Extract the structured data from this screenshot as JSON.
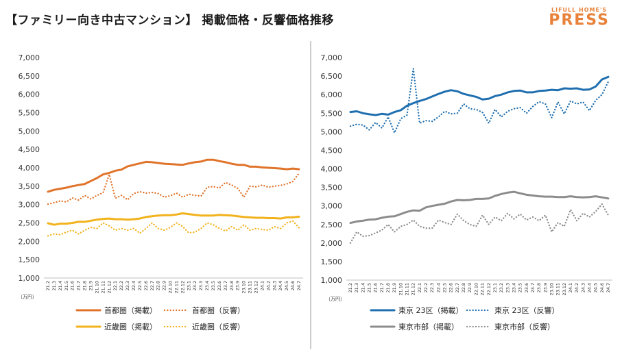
{
  "title": "【ファミリー向き中古マンション】 掲載価格・反響価格推移",
  "brand": {
    "top": "LIFULL HOME'S",
    "name": "PRESS"
  },
  "colors": {
    "orange": "#e0732a",
    "orange_dot": "#e0732a",
    "yellow": "#f2b21c",
    "yellow_dot": "#f2b21c",
    "blue": "#1f6fb0",
    "blue_dot": "#1f6fb0",
    "gray": "#8c8c8c",
    "gray_dot": "#8c8c8c"
  },
  "chart_data": [
    {
      "type": "line",
      "unit_label": "（万円）",
      "ylim": [
        1000,
        7000
      ],
      "yticks": [
        "1,000",
        "1,500",
        "2,000",
        "2,500",
        "3,000",
        "3,500",
        "4,000",
        "4,500",
        "5,000",
        "5,500",
        "6,000",
        "6,500",
        "7,000"
      ],
      "x": [
        "21.2",
        "21.3",
        "21.4",
        "21.5",
        "21.6",
        "21.7",
        "21.8",
        "21.9",
        "21.10",
        "21.11",
        "21.12",
        "22.1",
        "22.2",
        "22.3",
        "22.4",
        "22.5",
        "22.6",
        "22.7",
        "22.8",
        "22.9",
        "22.10",
        "22.11",
        "22.12",
        "23.1",
        "23.2",
        "23.3",
        "23.4",
        "23.5",
        "23.6",
        "23.7",
        "23.8",
        "23.9",
        "23.10",
        "23.11",
        "23.12",
        "24.1",
        "24.2",
        "24.3",
        "24.4",
        "24.5",
        "24.6",
        "24.7"
      ],
      "series": [
        {
          "name": "首都圏（掲載）",
          "style": "solid",
          "color": "orange",
          "values": [
            3350,
            3400,
            3430,
            3460,
            3500,
            3530,
            3560,
            3640,
            3720,
            3820,
            3860,
            3920,
            3950,
            4040,
            4080,
            4120,
            4160,
            4150,
            4130,
            4110,
            4100,
            4090,
            4080,
            4120,
            4150,
            4170,
            4220,
            4220,
            4180,
            4150,
            4110,
            4080,
            4080,
            4030,
            4030,
            4010,
            4000,
            3990,
            3980,
            3960,
            3980,
            3960
          ]
        },
        {
          "name": "首都圏（反響）",
          "style": "dotted",
          "color": "orange_dot",
          "values": [
            3010,
            3050,
            3100,
            3070,
            3180,
            3120,
            3250,
            3150,
            3250,
            3320,
            3820,
            3170,
            3250,
            3130,
            3300,
            3350,
            3310,
            3330,
            3300,
            3200,
            3240,
            3310,
            3200,
            3280,
            3250,
            3230,
            3470,
            3490,
            3450,
            3600,
            3530,
            3440,
            3200,
            3500,
            3480,
            3530,
            3470,
            3500,
            3520,
            3560,
            3630,
            3850
          ]
        },
        {
          "name": "近畿圏（掲載）",
          "style": "solid",
          "color": "yellow",
          "values": [
            2490,
            2450,
            2480,
            2480,
            2500,
            2530,
            2530,
            2560,
            2590,
            2610,
            2620,
            2600,
            2600,
            2590,
            2600,
            2620,
            2660,
            2680,
            2700,
            2710,
            2710,
            2730,
            2760,
            2740,
            2720,
            2700,
            2700,
            2700,
            2720,
            2710,
            2700,
            2680,
            2660,
            2650,
            2640,
            2640,
            2630,
            2630,
            2620,
            2650,
            2650,
            2670
          ]
        },
        {
          "name": "近畿圏（反響）",
          "style": "dotted",
          "color": "yellow_dot",
          "values": [
            2150,
            2200,
            2180,
            2250,
            2300,
            2200,
            2300,
            2380,
            2350,
            2500,
            2420,
            2300,
            2350,
            2300,
            2350,
            2220,
            2350,
            2500,
            2350,
            2300,
            2380,
            2500,
            2400,
            2230,
            2250,
            2350,
            2500,
            2450,
            2350,
            2280,
            2400,
            2300,
            2450,
            2300,
            2350,
            2320,
            2300,
            2400,
            2350,
            2500,
            2550,
            2370
          ]
        }
      ],
      "legend": [
        {
          "series": 0,
          "label": "首都圏（掲載）"
        },
        {
          "series": 1,
          "label": "首都圏（反響）"
        },
        {
          "series": 2,
          "label": "近畿圏（掲載）"
        },
        {
          "series": 3,
          "label": "近畿圏（反響）"
        }
      ]
    },
    {
      "type": "line",
      "unit_label": "（万円）",
      "ylim": [
        1000,
        7000
      ],
      "yticks": [
        "1,000",
        "1,500",
        "2,000",
        "2,500",
        "3,000",
        "3,500",
        "4,000",
        "4,500",
        "5,000",
        "5,500",
        "6,000",
        "6,500",
        "7,000"
      ],
      "x": [
        "21.2",
        "21.3",
        "21.4",
        "21.5",
        "21.6",
        "21.7",
        "21.8",
        "21.9",
        "21.10",
        "21.11",
        "21.12",
        "22.1",
        "22.2",
        "22.3",
        "22.4",
        "22.5",
        "22.6",
        "22.7",
        "22.8",
        "22.9",
        "22.10",
        "22.11",
        "22.12",
        "23.1",
        "23.2",
        "23.3",
        "23.4",
        "23.5",
        "23.6",
        "23.7",
        "23.8",
        "23.9",
        "23.10",
        "23.11",
        "23.12",
        "24.1",
        "24.2",
        "24.3",
        "24.4",
        "24.5",
        "24.6",
        "24.7"
      ],
      "series": [
        {
          "name": "東京 23区（掲載）",
          "style": "solid",
          "color": "blue",
          "values": [
            5530,
            5550,
            5500,
            5470,
            5450,
            5480,
            5460,
            5530,
            5580,
            5700,
            5770,
            5830,
            5880,
            5950,
            6020,
            6080,
            6120,
            6090,
            6020,
            5980,
            5940,
            5870,
            5890,
            5960,
            6000,
            6060,
            6100,
            6110,
            6060,
            6060,
            6100,
            6110,
            6130,
            6120,
            6170,
            6160,
            6170,
            6130,
            6140,
            6220,
            6410,
            6480
          ]
        },
        {
          "name": "東京 23区（反響）",
          "style": "dotted",
          "color": "blue_dot",
          "values": [
            5150,
            5200,
            5180,
            5050,
            5250,
            5100,
            5400,
            4970,
            5350,
            5450,
            6700,
            5230,
            5300,
            5280,
            5400,
            5550,
            5480,
            5500,
            5750,
            5620,
            5600,
            5520,
            5230,
            5600,
            5400,
            5550,
            5620,
            5650,
            5500,
            5680,
            5810,
            5750,
            5380,
            5800,
            5480,
            5830,
            5750,
            5800,
            5570,
            5850,
            6000,
            6350
          ]
        },
        {
          "name": "東京市部（掲載）",
          "style": "solid",
          "color": "gray",
          "values": [
            2540,
            2580,
            2600,
            2630,
            2640,
            2680,
            2710,
            2720,
            2780,
            2840,
            2880,
            2870,
            2960,
            3000,
            3030,
            3060,
            3120,
            3160,
            3150,
            3160,
            3190,
            3190,
            3200,
            3270,
            3320,
            3360,
            3380,
            3340,
            3300,
            3280,
            3260,
            3250,
            3250,
            3240,
            3240,
            3260,
            3240,
            3230,
            3240,
            3260,
            3230,
            3200
          ]
        },
        {
          "name": "東京市部（反響）",
          "style": "dotted",
          "color": "gray_dot",
          "values": [
            2000,
            2300,
            2180,
            2200,
            2270,
            2350,
            2500,
            2300,
            2450,
            2500,
            2620,
            2450,
            2400,
            2400,
            2620,
            2550,
            2500,
            2780,
            2600,
            2500,
            2450,
            2750,
            2500,
            2700,
            2600,
            2800,
            2650,
            2780,
            2620,
            2700,
            2600,
            2750,
            2300,
            2550,
            2450,
            2900,
            2600,
            2800,
            2700,
            2850,
            3050,
            2750
          ]
        }
      ],
      "legend": [
        {
          "series": 0,
          "label": "東京 23区（掲載）"
        },
        {
          "series": 1,
          "label": "東京 23区（反響）"
        },
        {
          "series": 2,
          "label": "東京市部（掲載）"
        },
        {
          "series": 3,
          "label": "東京市部（反響）"
        }
      ]
    }
  ]
}
